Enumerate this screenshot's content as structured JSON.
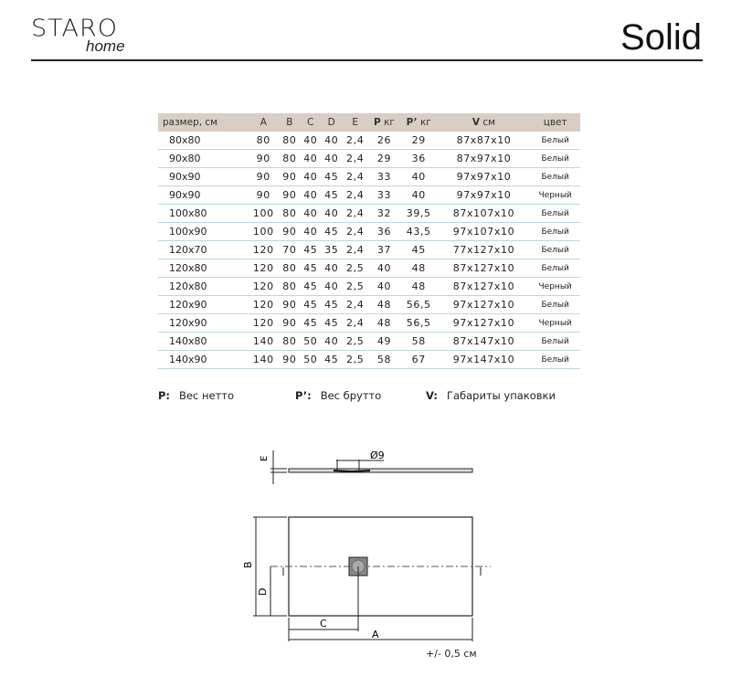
{
  "header": {
    "logo_text": "STARO",
    "logo_sub": "home",
    "title": "Solid"
  },
  "table": {
    "headers": {
      "size": "размер, см",
      "a": "A",
      "b": "B",
      "c": "C",
      "d": "D",
      "e": "E",
      "p_symbol": "P",
      "p_unit": "кг",
      "p2_symbol": "P’",
      "p2_unit": "кг",
      "v_symbol": "V",
      "v_unit": "см",
      "color": "цвет"
    },
    "rows": [
      [
        "80x80",
        "80",
        "80",
        "40",
        "40",
        "2,4",
        "26",
        "29",
        "87x87x10",
        "Белый"
      ],
      [
        "90x80",
        "90",
        "80",
        "40",
        "40",
        "2,4",
        "29",
        "36",
        "87x97x10",
        "Белый"
      ],
      [
        "90x90",
        "90",
        "90",
        "40",
        "45",
        "2,4",
        "33",
        "40",
        "97x97x10",
        "Белый"
      ],
      [
        "90x90",
        "90",
        "90",
        "40",
        "45",
        "2,4",
        "33",
        "40",
        "97x97x10",
        "Черный"
      ],
      [
        "100x80",
        "100",
        "80",
        "40",
        "40",
        "2,4",
        "32",
        "39,5",
        "87x107x10",
        "Белый"
      ],
      [
        "100x90",
        "100",
        "90",
        "40",
        "45",
        "2,4",
        "36",
        "43,5",
        "97x107x10",
        "Белый"
      ],
      [
        "120x70",
        "120",
        "70",
        "45",
        "35",
        "2,4",
        "37",
        "45",
        "77x127x10",
        "Белый"
      ],
      [
        "120x80",
        "120",
        "80",
        "45",
        "40",
        "2,5",
        "40",
        "48",
        "87x127x10",
        "Белый"
      ],
      [
        "120x80",
        "120",
        "80",
        "45",
        "40",
        "2,5",
        "40",
        "48",
        "87x127x10",
        "Черный"
      ],
      [
        "120x90",
        "120",
        "90",
        "45",
        "45",
        "2,4",
        "48",
        "56,5",
        "97x127x10",
        "Белый"
      ],
      [
        "120x90",
        "120",
        "90",
        "45",
        "45",
        "2,4",
        "48",
        "56,5",
        "97x127x10",
        "Черный"
      ],
      [
        "140x80",
        "140",
        "80",
        "50",
        "40",
        "2,5",
        "49",
        "58",
        "87x147x10",
        "Белый"
      ],
      [
        "140x90",
        "140",
        "90",
        "50",
        "45",
        "2,5",
        "58",
        "67",
        "97x147x10",
        "Белый"
      ]
    ]
  },
  "legend": [
    {
      "key": "P:",
      "text": "Вес нетто"
    },
    {
      "key": "P’:",
      "text": "Вес брутто"
    },
    {
      "key": "V:",
      "text": "Габариты упаковки"
    }
  ],
  "drawing": {
    "label_e": "E",
    "label_diameter": "Ø9",
    "label_a": "A",
    "label_b": "B",
    "label_c": "C",
    "label_d": "D",
    "tolerance": "+/- 0,5 см"
  }
}
